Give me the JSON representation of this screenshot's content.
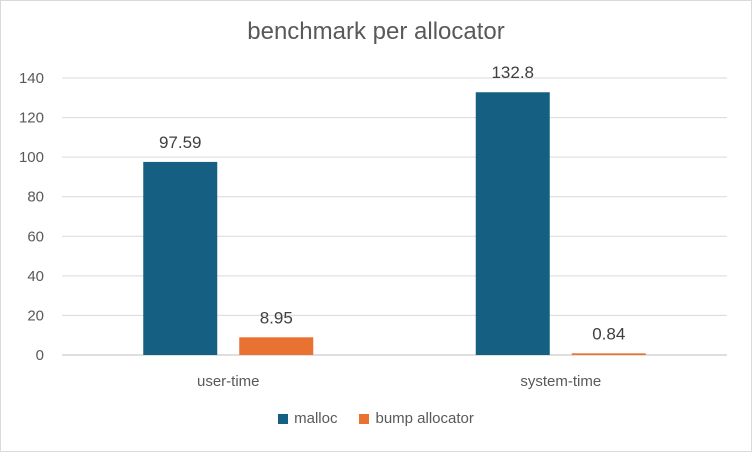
{
  "chart_data": {
    "type": "bar",
    "title": "benchmark per allocator",
    "categories": [
      "user-time",
      "system-time"
    ],
    "series": [
      {
        "name": "malloc",
        "values": [
          97.59,
          132.8
        ],
        "labels": [
          "97.59",
          "132.8"
        ],
        "color": "#156082"
      },
      {
        "name": "bump allocator",
        "values": [
          8.95,
          0.84
        ],
        "labels": [
          "8.95",
          "0.84"
        ],
        "color": "#E97132"
      }
    ],
    "xlabel": "",
    "ylabel": "",
    "ylim": [
      0,
      140
    ],
    "yticks": [
      "0",
      "20",
      "40",
      "60",
      "80",
      "100",
      "120",
      "140"
    ],
    "grid": true,
    "legend": "bottom"
  }
}
